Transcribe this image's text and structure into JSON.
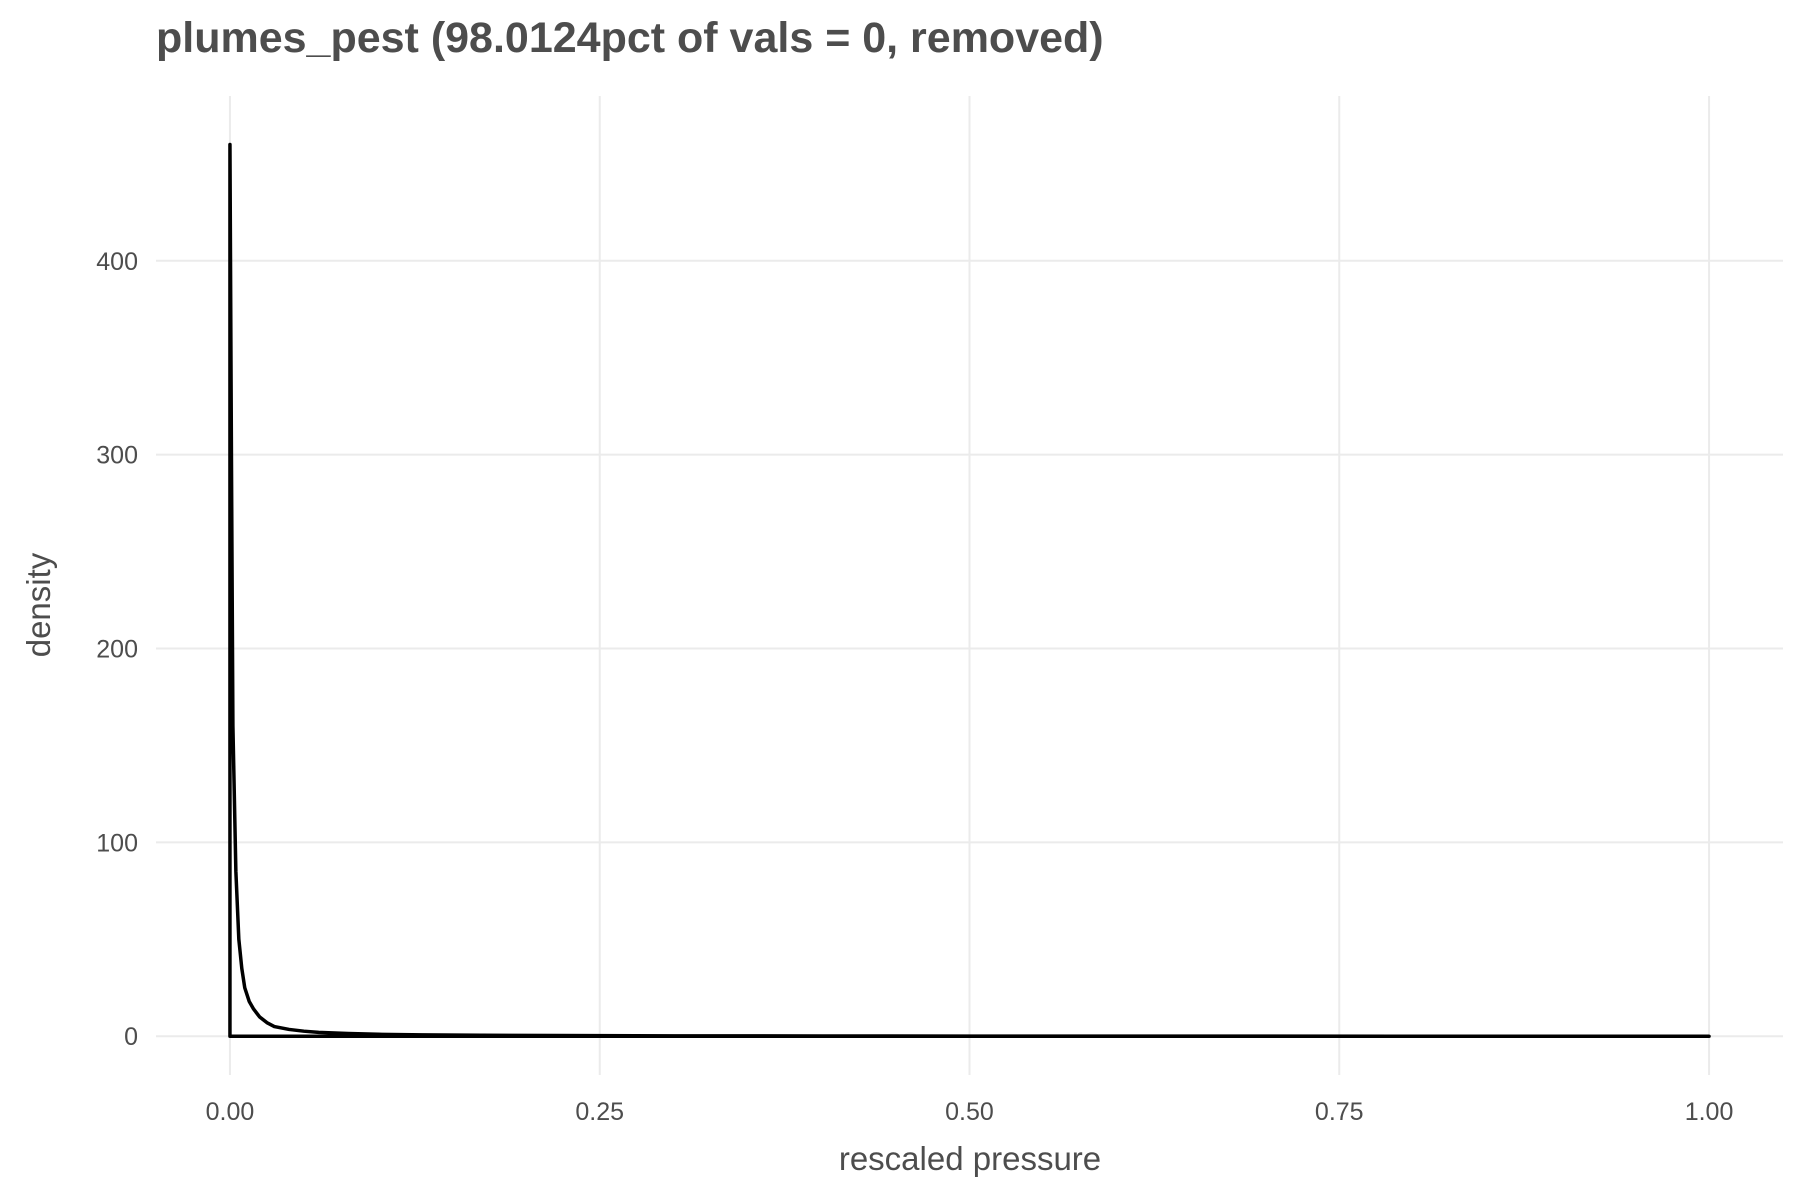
{
  "chart_data": {
    "type": "area",
    "title": "plumes_pest (98.0124pct of vals = 0, removed)",
    "xlabel": "rescaled pressure",
    "ylabel": "density",
    "xlim": [
      -0.05,
      1.05
    ],
    "ylim": [
      -20,
      485
    ],
    "x_ticks": [
      0,
      0.25,
      0.5,
      0.75,
      1
    ],
    "x_tick_labels": [
      "0.00",
      "0.25",
      "0.50",
      "0.75",
      "1.00"
    ],
    "y_ticks": [
      0,
      100,
      200,
      300,
      400
    ],
    "y_tick_labels": [
      "0",
      "100",
      "200",
      "300",
      "400"
    ],
    "grid": true,
    "line_color": "#000000",
    "series": [
      {
        "x": [
          0,
          0.001,
          0.002,
          0.004,
          0.006,
          0.008,
          0.01,
          0.013,
          0.016,
          0.02,
          0.025,
          0.03,
          0.04,
          0.05,
          0.06,
          0.08,
          0.1,
          0.13,
          0.17,
          0.22,
          0.3,
          0.4,
          0.5,
          0.6,
          0.7,
          0.8,
          0.9,
          1.0
        ],
        "y": [
          460,
          300,
          160,
          85,
          50,
          35,
          25,
          18,
          14,
          10,
          7,
          5,
          3.5,
          2.6,
          2,
          1.4,
          1,
          0.7,
          0.5,
          0.35,
          0.2,
          0.12,
          0.08,
          0.05,
          0.03,
          0.02,
          0.01,
          0
        ]
      }
    ]
  }
}
